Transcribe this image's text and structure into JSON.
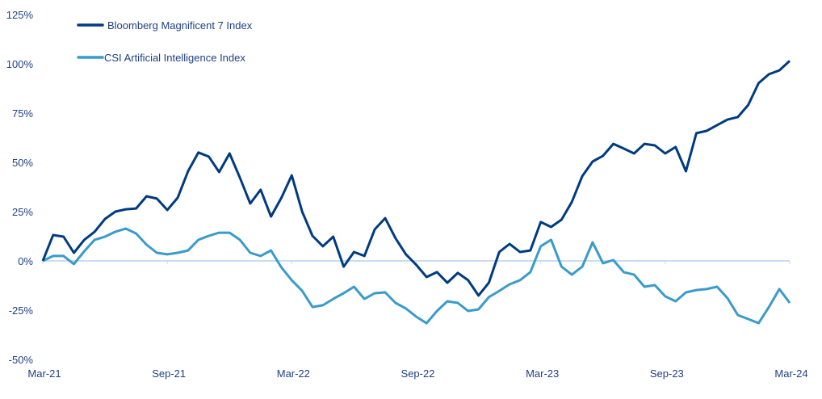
{
  "chart_data": {
    "type": "line",
    "title": "",
    "xlabel": "",
    "ylabel": "",
    "ylim": [
      -50,
      125
    ],
    "y_ticks": [
      "125%",
      "100%",
      "75%",
      "50%",
      "25%",
      "0%",
      "-25%",
      "-50%"
    ],
    "y_tick_values": [
      125,
      100,
      75,
      50,
      25,
      0,
      -25,
      -50
    ],
    "x_ticks": [
      "Mar-21",
      "Sep-21",
      "Mar-22",
      "Sep-22",
      "Mar-23",
      "Sep-23",
      "Mar-24"
    ],
    "x_tick_dates": [
      "2021-03-01",
      "2021-09-01",
      "2022-03-01",
      "2022-09-01",
      "2023-03-01",
      "2023-09-01",
      "2024-03-01"
    ],
    "grid": false,
    "legend_position": "top-left",
    "x": [
      "2021-03-01",
      "2021-03-15",
      "2021-04-01",
      "2021-04-15",
      "2021-05-01",
      "2021-05-15",
      "2021-06-01",
      "2021-06-15",
      "2021-07-01",
      "2021-07-15",
      "2021-08-01",
      "2021-08-15",
      "2021-09-01",
      "2021-09-15",
      "2021-10-01",
      "2021-10-15",
      "2021-11-01",
      "2021-11-15",
      "2021-12-01",
      "2021-12-15",
      "2022-01-01",
      "2022-01-15",
      "2022-02-01",
      "2022-02-15",
      "2022-03-01",
      "2022-03-15",
      "2022-04-01",
      "2022-04-15",
      "2022-05-01",
      "2022-05-15",
      "2022-06-01",
      "2022-06-15",
      "2022-07-01",
      "2022-07-15",
      "2022-08-01",
      "2022-08-15",
      "2022-09-01",
      "2022-09-15",
      "2022-10-01",
      "2022-10-15",
      "2022-11-01",
      "2022-11-15",
      "2022-12-01",
      "2022-12-15",
      "2023-01-01",
      "2023-01-15",
      "2023-02-01",
      "2023-02-15",
      "2023-03-01",
      "2023-03-15",
      "2023-04-01",
      "2023-04-15",
      "2023-05-01",
      "2023-05-15",
      "2023-06-01",
      "2023-06-15",
      "2023-07-01",
      "2023-07-15",
      "2023-08-01",
      "2023-08-15",
      "2023-09-01",
      "2023-09-15",
      "2023-10-01",
      "2023-10-15",
      "2023-11-01",
      "2023-11-15",
      "2023-12-01",
      "2023-12-15",
      "2024-01-01",
      "2024-01-15",
      "2024-02-01",
      "2024-02-15",
      "2024-03-01"
    ],
    "series": [
      {
        "name": "Bloomberg Magnificent 7 Index",
        "color": "#003b82",
        "values": [
          0,
          13.1,
          12.3,
          4.1,
          10.7,
          14.8,
          21.3,
          25,
          26.2,
          26.6,
          32.8,
          31.6,
          25.8,
          32,
          45.5,
          55,
          52.9,
          45.1,
          54.5,
          42.2,
          29.1,
          36.1,
          22.5,
          32,
          43.4,
          25,
          12.7,
          7.4,
          12.3,
          -2.9,
          4.5,
          2.5,
          16,
          21.7,
          11.5,
          3.3,
          -2,
          -8.2,
          -5.7,
          -11.1,
          -6.1,
          -9.8,
          -17.6,
          -11.1,
          4.5,
          8.6,
          4.5,
          5.3,
          19.7,
          17.2,
          20.9,
          29.9,
          43,
          50.4,
          53.3,
          59.4,
          57,
          54.5,
          59.4,
          58.6,
          54.5,
          57.8,
          45.5,
          64.8,
          66,
          68.9,
          71.7,
          73,
          79.1,
          90.2,
          94.7,
          96.7,
          101.5
        ]
      },
      {
        "name": "CSI Artificial Intelligence Index",
        "color": "#3a9bcb",
        "values": [
          0,
          2.5,
          2.5,
          -1.6,
          4.9,
          10.7,
          12.3,
          14.8,
          16.4,
          13.9,
          8.2,
          4.1,
          3.3,
          4.1,
          5.3,
          10.7,
          12.7,
          14.3,
          14.3,
          10.7,
          4.1,
          2.5,
          5.3,
          -3.3,
          -9.8,
          -15.2,
          -23.4,
          -22.5,
          -19.3,
          -16.4,
          -13.1,
          -19.3,
          -16.4,
          -16,
          -21.3,
          -24.2,
          -28.3,
          -31.6,
          -25.4,
          -20.5,
          -21.3,
          -25.4,
          -24.6,
          -18.4,
          -15.2,
          -11.9,
          -9.8,
          -5.7,
          7.4,
          10.7,
          -2.9,
          -7,
          -2.9,
          9.4,
          -1.2,
          0.4,
          -5.7,
          -7,
          -13.1,
          -12.3,
          -18,
          -20.5,
          -16,
          -14.8,
          -14.3,
          -13.1,
          -18.9,
          -27.5,
          -29.5,
          -31.6,
          -23.4,
          -14.3,
          -21.3
        ]
      }
    ],
    "zero_line_color": "#c9dcf2",
    "text_color": "#1f3f86"
  }
}
